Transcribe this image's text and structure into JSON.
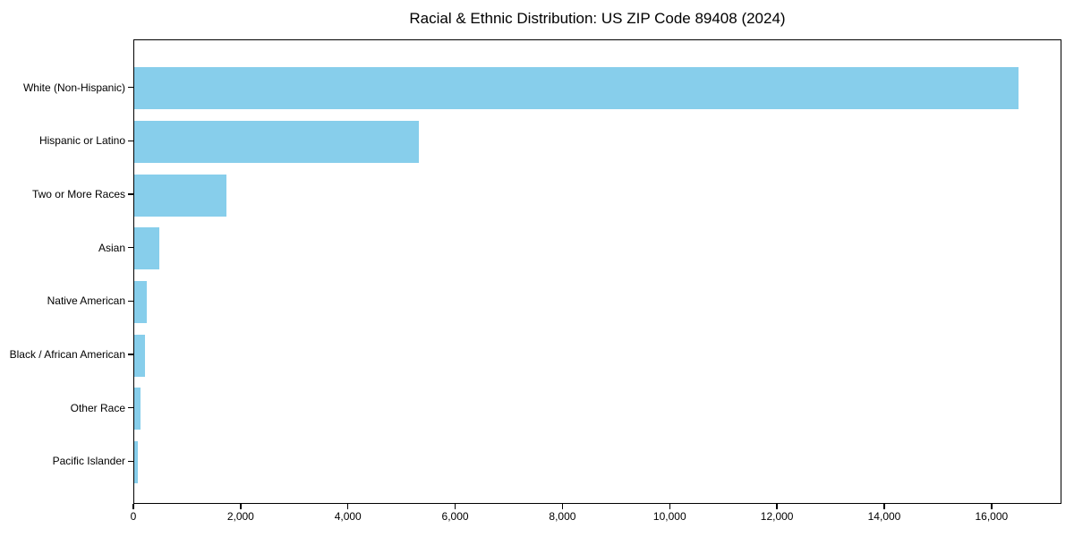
{
  "figure": {
    "background_color": "#ffffff",
    "spine_color": "#000000",
    "text_color": "#000000"
  },
  "chart_data": {
    "type": "bar",
    "orientation": "horizontal",
    "title": "Racial & Ethnic Distribution: US ZIP Code 89408 (2024)",
    "xlabel": "",
    "ylabel": "",
    "grid": false,
    "legend": null,
    "bar_color": "#87CEEB",
    "categories": [
      "White (Non-Hispanic)",
      "Hispanic or Latino",
      "Two or More Races",
      "Asian",
      "Native American",
      "Black / African American",
      "Other Race",
      "Pacific Islander"
    ],
    "values": [
      16480,
      5300,
      1715,
      470,
      230,
      200,
      120,
      65
    ],
    "xlim": [
      0,
      17304
    ],
    "xticks": [
      0,
      2000,
      4000,
      6000,
      8000,
      10000,
      12000,
      14000,
      16000
    ],
    "xtick_labels": [
      "0",
      "2,000",
      "4,000",
      "6,000",
      "8,000",
      "10,000",
      "12,000",
      "14,000",
      "16,000"
    ]
  }
}
